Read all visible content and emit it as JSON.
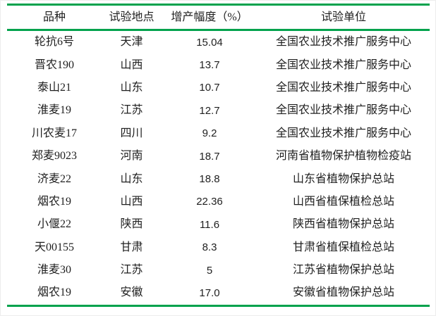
{
  "colors": {
    "rule_green": "#00A24C",
    "text": "#1f1f1f",
    "background": "#ffffff"
  },
  "table": {
    "headers": [
      "品种",
      "试验地点",
      "增产幅度（%）",
      "试验单位"
    ],
    "rows": [
      [
        "轮抗6号",
        "天津",
        "15.04",
        "全国农业技术推广服务中心"
      ],
      [
        "晋农190",
        "山西",
        "13.7",
        "全国农业技术推广服务中心"
      ],
      [
        "泰山21",
        "山东",
        "10.7",
        "全国农业技术推广服务中心"
      ],
      [
        "淮麦19",
        "江苏",
        "12.7",
        "全国农业技术推广服务中心"
      ],
      [
        "川农麦17",
        "四川",
        "9.2",
        "全国农业技术推广服务中心"
      ],
      [
        "郑麦9023",
        "河南",
        "18.7",
        "河南省植物保护植物检疫站"
      ],
      [
        "济麦22",
        "山东",
        "18.8",
        "山东省植物保护总站"
      ],
      [
        "烟农19",
        "山西",
        "22.36",
        "山西省植保植检总站"
      ],
      [
        "小偃22",
        "陕西",
        "11.6",
        "陕西省植物保护总站"
      ],
      [
        "天00155",
        "甘肃",
        "8.3",
        "甘肃省植保植检总站"
      ],
      [
        "淮麦30",
        "江苏",
        "5",
        "江苏省植物保护总站"
      ],
      [
        "烟农19",
        "安徽",
        "17.0",
        "安徽省植物保护总站"
      ]
    ]
  }
}
